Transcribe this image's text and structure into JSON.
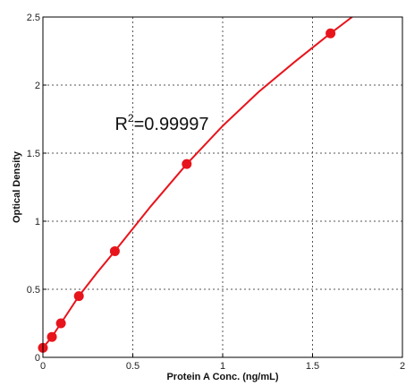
{
  "chart_data": {
    "type": "scatter",
    "xlabel": "Protein A Conc. (ng/mL)",
    "ylabel": "Optical Density",
    "xlim": [
      0,
      2
    ],
    "ylim": [
      0,
      2.5
    ],
    "x_ticks": [
      "0",
      "0.5",
      "1",
      "1.5",
      "2"
    ],
    "y_ticks": [
      "0",
      "0.5",
      "1",
      "1.5",
      "2",
      "2.5"
    ],
    "x_tick_values": [
      0,
      0.5,
      1,
      1.5,
      2
    ],
    "y_tick_values": [
      0,
      0.5,
      1,
      1.5,
      2,
      2.5
    ],
    "grid": true,
    "points": [
      {
        "x": 0,
        "y": 0.07
      },
      {
        "x": 0.05,
        "y": 0.15
      },
      {
        "x": 0.1,
        "y": 0.25
      },
      {
        "x": 0.2,
        "y": 0.45
      },
      {
        "x": 0.4,
        "y": 0.78
      },
      {
        "x": 0.8,
        "y": 1.42
      },
      {
        "x": 1.6,
        "y": 2.38
      }
    ],
    "fit_curve": [
      {
        "x": 0,
        "y": 0.07
      },
      {
        "x": 0.05,
        "y": 0.15
      },
      {
        "x": 0.1,
        "y": 0.25
      },
      {
        "x": 0.2,
        "y": 0.45
      },
      {
        "x": 0.3,
        "y": 0.62
      },
      {
        "x": 0.4,
        "y": 0.78
      },
      {
        "x": 0.6,
        "y": 1.11
      },
      {
        "x": 0.8,
        "y": 1.42
      },
      {
        "x": 1.0,
        "y": 1.7
      },
      {
        "x": 1.2,
        "y": 1.95
      },
      {
        "x": 1.4,
        "y": 2.17
      },
      {
        "x": 1.6,
        "y": 2.38
      },
      {
        "x": 1.72,
        "y": 2.5
      }
    ],
    "annotation": {
      "base": "R",
      "sup": "2",
      "text": "=0.99997",
      "x": 0.45,
      "y": 1.67
    },
    "colors": {
      "series": "#e8141b",
      "grid": "#555555",
      "axis": "#000000"
    }
  }
}
